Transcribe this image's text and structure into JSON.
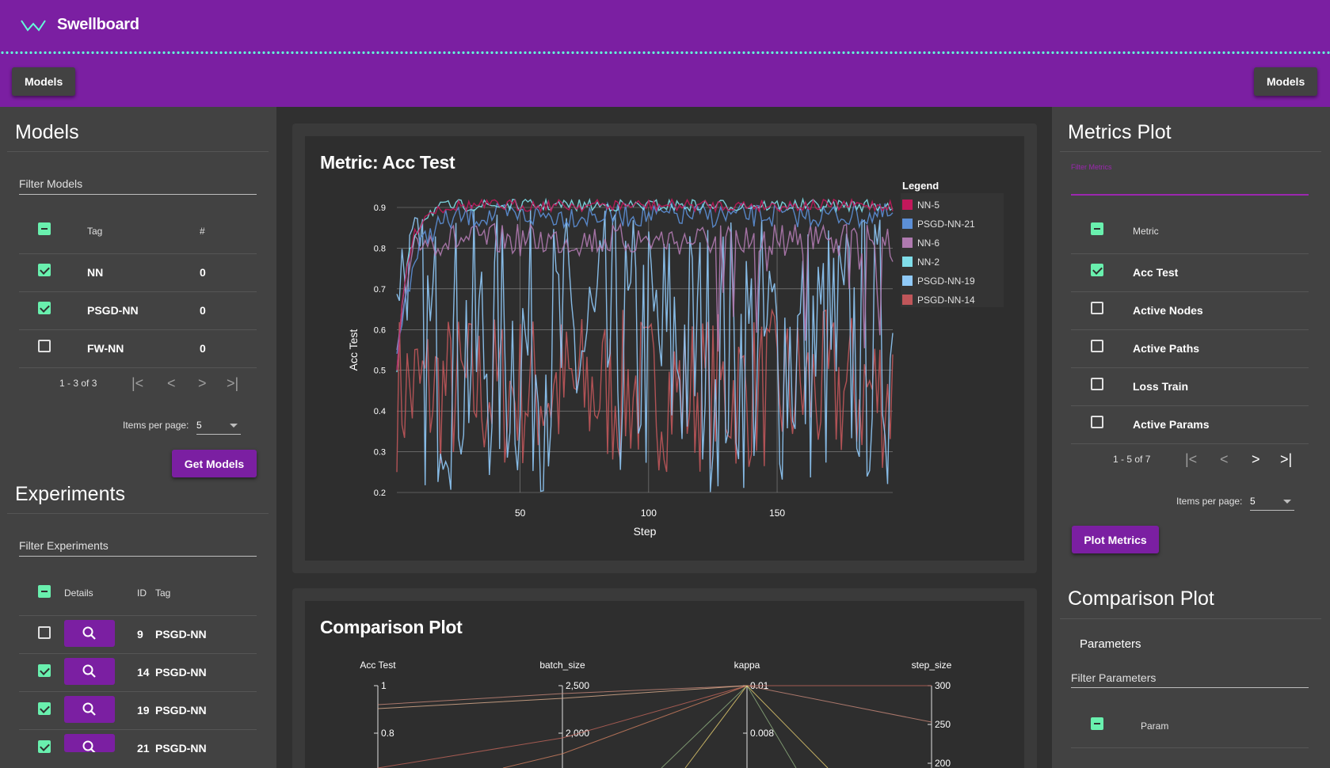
{
  "app": {
    "title": "Swellboard"
  },
  "toolbar": {
    "left_button": "Models",
    "right_button": "Models"
  },
  "models": {
    "title": "Models",
    "filter_placeholder": "Filter Models",
    "columns": {
      "tag": "Tag",
      "count": "#"
    },
    "rows": [
      {
        "tag": "NN",
        "count": "0",
        "checked": true
      },
      {
        "tag": "PSGD-NN",
        "count": "0",
        "checked": true
      },
      {
        "tag": "FW-NN",
        "count": "0",
        "checked": false
      }
    ],
    "pager": {
      "range": "1 - 3 of 3",
      "items_per_page_label": "Items per page:",
      "items_per_page": "5"
    },
    "button": "Get Models"
  },
  "experiments": {
    "title": "Experiments",
    "filter_placeholder": "Filter Experiments",
    "columns": {
      "details": "Details",
      "id": "ID",
      "tag": "Tag"
    },
    "rows": [
      {
        "id": "9",
        "tag": "PSGD-NN",
        "checked": false
      },
      {
        "id": "14",
        "tag": "PSGD-NN",
        "checked": true
      },
      {
        "id": "19",
        "tag": "PSGD-NN",
        "checked": true
      },
      {
        "id": "21",
        "tag": "PSGD-NN",
        "checked": true
      }
    ]
  },
  "metrics_plot": {
    "title": "Metrics Plot",
    "filter_placeholder": "Filter Metrics",
    "column": "Metric",
    "rows": [
      {
        "label": "Acc Test",
        "checked": true
      },
      {
        "label": "Active Nodes",
        "checked": false
      },
      {
        "label": "Active Paths",
        "checked": false
      },
      {
        "label": "Loss Train",
        "checked": false
      },
      {
        "label": "Active Params",
        "checked": false
      }
    ],
    "pager": {
      "range": "1 - 5 of 7",
      "items_per_page_label": "Items per page:",
      "items_per_page": "5"
    },
    "button": "Plot Metrics"
  },
  "comparison_side": {
    "title": "Comparison Plot",
    "subtitle": "Parameters",
    "filter_placeholder": "Filter Parameters",
    "column": "Param"
  },
  "metric_card": {
    "title": "Metric: Acc Test"
  },
  "comparison_card": {
    "title": "Comparison Plot"
  },
  "chart_data": [
    {
      "type": "line",
      "title": "Metric: Acc Test",
      "xlabel": "Step",
      "ylabel": "Acc Test",
      "xlim": [
        2,
        195
      ],
      "ylim": [
        0.2,
        0.9
      ],
      "xticks": [
        50,
        100,
        150
      ],
      "yticks": [
        0.2,
        0.3,
        0.4,
        0.5,
        0.6,
        0.7,
        0.8,
        0.9
      ],
      "grid": true,
      "legend": {
        "title": "Legend",
        "position": "right"
      },
      "series": [
        {
          "name": "NN-5",
          "color": "#c2185b",
          "values_summary": "rises from ~0.5 to ~0.9 within 10 steps, then fluctuates 0.88-0.92"
        },
        {
          "name": "PSGD-NN-21",
          "color": "#5c8fd6",
          "values_summary": "rises from ~0.55 to ~0.9, plateaus 0.85-0.92"
        },
        {
          "name": "NN-6",
          "color": "#b07ab0",
          "values_summary": "rises to ~0.87, mostly 0.8-0.9 with dips to ~0.5 after step 130"
        },
        {
          "name": "NN-2",
          "color": "#80deea",
          "values_summary": "rises to ~0.9, fluctuates 0.88-0.92"
        },
        {
          "name": "PSGD-NN-19",
          "color": "#90caf9",
          "values_summary": "highly volatile 0.2-0.9 throughout"
        },
        {
          "name": "PSGD-NN-14",
          "color": "#c0565a",
          "values_summary": "volatile 0.25-0.65 throughout"
        }
      ]
    },
    {
      "type": "parallel-coordinates",
      "title": "Comparison Plot",
      "axes": [
        {
          "name": "Acc Test",
          "ticks": [
            "1",
            "0.8"
          ]
        },
        {
          "name": "batch_size",
          "ticks": [
            "2,500",
            "2,000"
          ]
        },
        {
          "name": "kappa",
          "ticks": [
            "0.01",
            "0.008"
          ]
        },
        {
          "name": "step_size",
          "ticks": [
            "300",
            "250",
            "200"
          ]
        }
      ]
    }
  ]
}
